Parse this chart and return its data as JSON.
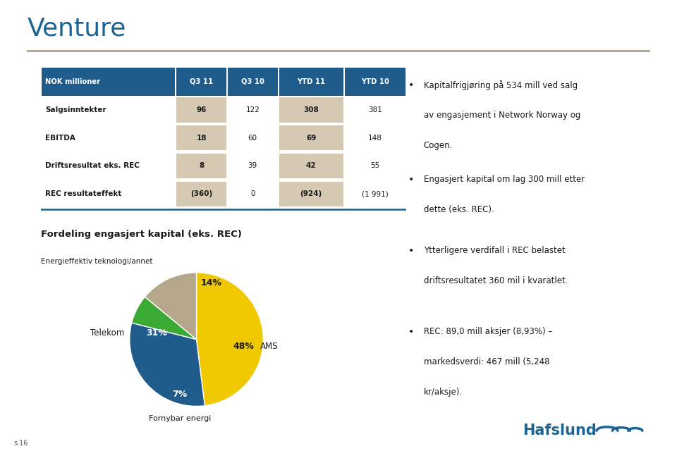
{
  "title": "Venture",
  "page_num": "s.16",
  "background_color": "#ffffff",
  "bottom_bar_color": "#c8b89a",
  "table": {
    "headers": [
      "NOK millioner",
      "Q3 11",
      "Q3 10",
      "YTD 11",
      "YTD 10"
    ],
    "header_bg": "#1f5c8b",
    "header_fg": "#ffffff",
    "highlight_cols": [
      1,
      3
    ],
    "highlight_color": "#c8b89a",
    "rows": [
      [
        "Salgsinntekter",
        "96",
        "122",
        "308",
        "381"
      ],
      [
        "EBITDA",
        "18",
        "60",
        "69",
        "148"
      ],
      [
        "Driftsresultat eks. REC",
        "8",
        "39",
        "42",
        "55"
      ],
      [
        "REC resultateffekt",
        "(360)",
        "0",
        "(924)",
        "(1 991)"
      ]
    ],
    "divider_color": "#1f5c8b"
  },
  "pie_title": "Fordeling engasjert kapital (eks. REC)",
  "pie_subtitle": "Energieffektiv teknologi/annet",
  "pie_slices": [
    48,
    31,
    7,
    14
  ],
  "pie_labels": [
    "AMS",
    "Telekom",
    "Fornybar energi",
    "Energieffektiv teknologi/annet"
  ],
  "pie_colors": [
    "#f0c800",
    "#1f5c8b",
    "#3aaa35",
    "#b5a88a"
  ],
  "bullet_points": [
    "Kapitalfrigjøring på 534 mill ved salg\nav engasjement i Network Norway og\nCogen.",
    "Engasjert kapital om lag 300 mill etter\ndette (eks. REC).",
    "Ytterligere verdifall i REC belastet\ndriftsresultatet 360 mil i kvaratlet.",
    "REC: 89,0 mill aksjer (8,93%) –\nmarkedsverdi: 467 mill (5,248\nkr/aksje)."
  ],
  "hafslund_color": "#1a6496",
  "title_color": "#1a6496",
  "title_fontsize": 26,
  "divider_top_color": "#b0a090"
}
